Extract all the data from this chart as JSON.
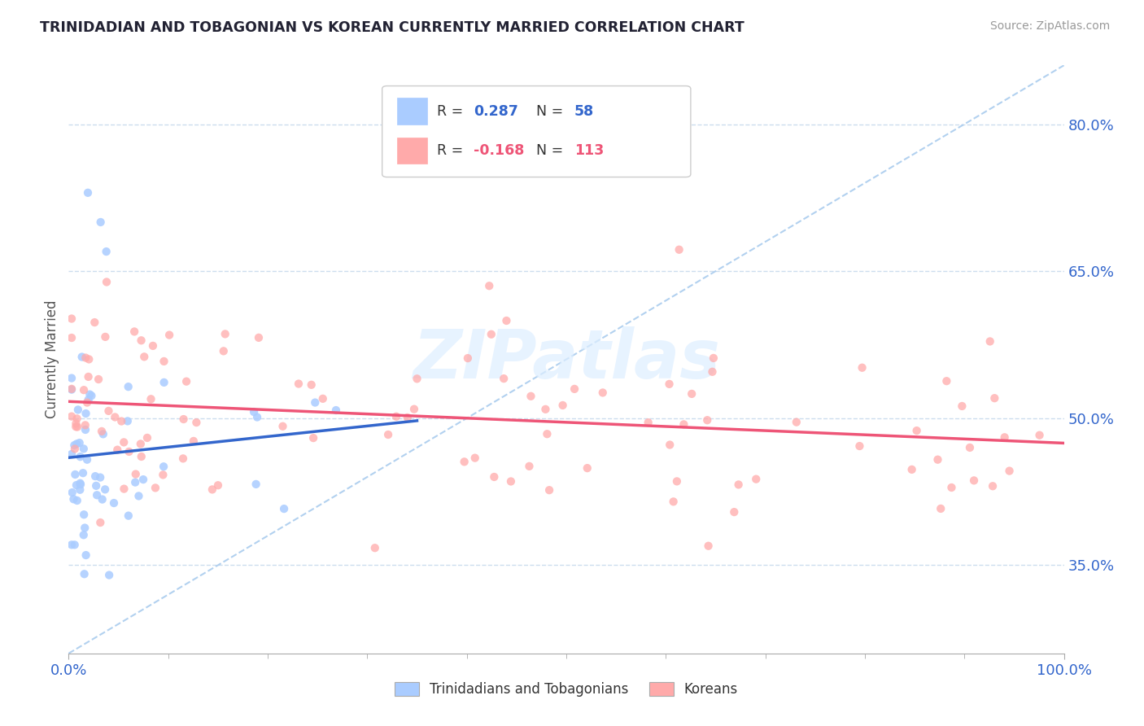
{
  "title": "TRINIDADIAN AND TOBAGONIAN VS KOREAN CURRENTLY MARRIED CORRELATION CHART",
  "source": "Source: ZipAtlas.com",
  "ylabel": "Currently Married",
  "xlim": [
    0.0,
    1.0
  ],
  "ylim": [
    0.26,
    0.86
  ],
  "yticks": [
    0.35,
    0.5,
    0.65,
    0.8
  ],
  "ytick_labels": [
    "35.0%",
    "50.0%",
    "65.0%",
    "80.0%"
  ],
  "xtick_labels": [
    "0.0%",
    "100.0%"
  ],
  "blue_color": "#aaccff",
  "pink_color": "#ffaaaa",
  "blue_line_color": "#3366cc",
  "pink_line_color": "#ee5577",
  "ref_line_color": "#aaccee",
  "legend_blue_label": "Trinidadians and Tobagonians",
  "legend_pink_label": "Koreans",
  "watermark": "ZIPatlas"
}
